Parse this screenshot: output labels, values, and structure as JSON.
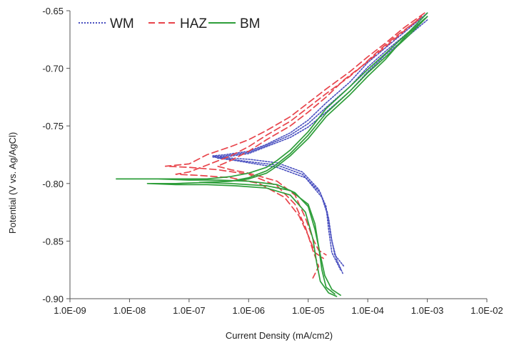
{
  "chart_data": {
    "type": "line",
    "title": "",
    "xlabel": "Current Density (mA/cm2)",
    "ylabel": "Potential (V vs. Ag/AgCl)",
    "x_scale": "log",
    "xlim": [
      1e-09,
      0.01
    ],
    "ylim": [
      -0.9,
      -0.65
    ],
    "x_ticks": [
      1e-09,
      1e-08,
      1e-07,
      1e-06,
      1e-05,
      0.0001,
      0.001,
      0.01
    ],
    "x_tick_labels": [
      "1.0E-09",
      "1.0E-08",
      "1.0E-07",
      "1.0E-06",
      "1.0E-05",
      "1.0E-04",
      "1.0E-03",
      "1.0E-02"
    ],
    "y_ticks": [
      -0.9,
      -0.85,
      -0.8,
      -0.75,
      -0.7,
      -0.65
    ],
    "y_tick_labels": [
      "-0.90",
      "-0.85",
      "-0.80",
      "-0.75",
      "-0.70",
      "-0.65"
    ],
    "grid": false,
    "legend_position": "top-left",
    "series": [
      {
        "name": "WM",
        "color": "#4a50c0",
        "dash": "dotted",
        "curves": [
          [
            [
              0.001,
              -0.652
            ],
            [
              0.0005,
              -0.665
            ],
            [
              0.0002,
              -0.682
            ],
            [
              0.0001,
              -0.695
            ],
            [
              5e-05,
              -0.712
            ],
            [
              2e-05,
              -0.73
            ],
            [
              1e-05,
              -0.745
            ],
            [
              5e-06,
              -0.756
            ],
            [
              2e-06,
              -0.766
            ],
            [
              1e-06,
              -0.772
            ],
            [
              4e-07,
              -0.775
            ],
            [
              2.5e-07,
              -0.776
            ],
            [
              5e-07,
              -0.778
            ],
            [
              1e-06,
              -0.779
            ],
            [
              3e-06,
              -0.782
            ],
            [
              8e-06,
              -0.79
            ],
            [
              1.5e-05,
              -0.805
            ],
            [
              2e-05,
              -0.82
            ],
            [
              2.2e-05,
              -0.84
            ],
            [
              2.5e-05,
              -0.86
            ],
            [
              3.5e-05,
              -0.875
            ]
          ],
          [
            [
              0.001,
              -0.655
            ],
            [
              0.0005,
              -0.668
            ],
            [
              0.0002,
              -0.685
            ],
            [
              0.0001,
              -0.699
            ],
            [
              5e-05,
              -0.716
            ],
            [
              2e-05,
              -0.734
            ],
            [
              1e-05,
              -0.748
            ],
            [
              5e-06,
              -0.758
            ],
            [
              2e-06,
              -0.767
            ],
            [
              1e-06,
              -0.773
            ],
            [
              4e-07,
              -0.776
            ],
            [
              2.5e-07,
              -0.777
            ],
            [
              5e-07,
              -0.779
            ],
            [
              1e-06,
              -0.781
            ],
            [
              3e-06,
              -0.784
            ],
            [
              8e-06,
              -0.792
            ],
            [
              1.6e-05,
              -0.808
            ],
            [
              2.1e-05,
              -0.825
            ],
            [
              2.4e-05,
              -0.845
            ],
            [
              2.8e-05,
              -0.862
            ],
            [
              4e-05,
              -0.872
            ]
          ],
          [
            [
              0.001,
              -0.658
            ],
            [
              0.0005,
              -0.671
            ],
            [
              0.0002,
              -0.688
            ],
            [
              0.0001,
              -0.703
            ],
            [
              5e-05,
              -0.72
            ],
            [
              2e-05,
              -0.738
            ],
            [
              1e-05,
              -0.751
            ],
            [
              5e-06,
              -0.76
            ],
            [
              2e-06,
              -0.768
            ],
            [
              1e-06,
              -0.774
            ],
            [
              4e-07,
              -0.777
            ],
            [
              3e-07,
              -0.778
            ],
            [
              6e-07,
              -0.78
            ],
            [
              1e-06,
              -0.782
            ],
            [
              3e-06,
              -0.786
            ],
            [
              9e-06,
              -0.795
            ],
            [
              1.7e-05,
              -0.812
            ],
            [
              2.2e-05,
              -0.83
            ],
            [
              2.5e-05,
              -0.85
            ],
            [
              3e-05,
              -0.866
            ],
            [
              3.8e-05,
              -0.878
            ]
          ]
        ]
      },
      {
        "name": "HAZ",
        "color": "#e8444b",
        "dash": "dashed",
        "curves": [
          [
            [
              0.0009,
              -0.652
            ],
            [
              0.0004,
              -0.665
            ],
            [
              0.0002,
              -0.678
            ],
            [
              0.0001,
              -0.69
            ],
            [
              5e-05,
              -0.703
            ],
            [
              2e-05,
              -0.718
            ],
            [
              1e-05,
              -0.73
            ],
            [
              5e-06,
              -0.742
            ],
            [
              2e-06,
              -0.754
            ],
            [
              1e-06,
              -0.762
            ],
            [
              5e-07,
              -0.768
            ],
            [
              2e-07,
              -0.775
            ],
            [
              1e-07,
              -0.783
            ],
            [
              4e-08,
              -0.785
            ],
            [
              1e-07,
              -0.786
            ],
            [
              3e-07,
              -0.788
            ],
            [
              1e-06,
              -0.792
            ],
            [
              3e-06,
              -0.802
            ],
            [
              6e-06,
              -0.818
            ],
            [
              9e-06,
              -0.838
            ],
            [
              1.2e-05,
              -0.858
            ],
            [
              1.5e-05,
              -0.872
            ],
            [
              1.2e-05,
              -0.882
            ]
          ],
          [
            [
              0.0008,
              -0.655
            ],
            [
              0.0004,
              -0.668
            ],
            [
              0.0002,
              -0.681
            ],
            [
              0.0001,
              -0.694
            ],
            [
              5e-05,
              -0.707
            ],
            [
              2e-05,
              -0.722
            ],
            [
              1e-05,
              -0.734
            ],
            [
              5e-06,
              -0.746
            ],
            [
              2e-06,
              -0.758
            ],
            [
              1e-06,
              -0.768
            ],
            [
              5e-07,
              -0.776
            ],
            [
              2e-07,
              -0.784
            ],
            [
              1e-07,
              -0.79
            ],
            [
              6e-08,
              -0.792
            ],
            [
              1.5e-07,
              -0.793
            ],
            [
              5e-07,
              -0.795
            ],
            [
              1.5e-06,
              -0.8
            ],
            [
              4e-06,
              -0.812
            ],
            [
              7e-06,
              -0.828
            ],
            [
              1e-05,
              -0.845
            ],
            [
              1.3e-05,
              -0.86
            ],
            [
              1.8e-05,
              -0.865
            ]
          ],
          [
            [
              0.0007,
              -0.658
            ],
            [
              0.0003,
              -0.672
            ],
            [
              0.00015,
              -0.685
            ],
            [
              8e-05,
              -0.698
            ],
            [
              4e-05,
              -0.71
            ],
            [
              2e-05,
              -0.725
            ],
            [
              1e-05,
              -0.738
            ],
            [
              5e-06,
              -0.75
            ],
            [
              2e-06,
              -0.762
            ],
            [
              1e-06,
              -0.772
            ],
            [
              5e-07,
              -0.78
            ],
            [
              3e-07,
              -0.785
            ],
            [
              5e-07,
              -0.788
            ],
            [
              1e-06,
              -0.791
            ],
            [
              3e-06,
              -0.798
            ],
            [
              6e-06,
              -0.81
            ],
            [
              9e-06,
              -0.83
            ],
            [
              1.2e-05,
              -0.848
            ],
            [
              1.5e-05,
              -0.858
            ],
            [
              2e-05,
              -0.862
            ]
          ]
        ]
      },
      {
        "name": "BM",
        "color": "#2e9e3a",
        "dash": "solid",
        "curves": [
          [
            [
              0.001,
              -0.652
            ],
            [
              0.0005,
              -0.668
            ],
            [
              0.0002,
              -0.687
            ],
            [
              0.0001,
              -0.701
            ],
            [
              5e-05,
              -0.716
            ],
            [
              2e-05,
              -0.735
            ],
            [
              1e-05,
              -0.755
            ],
            [
              5e-06,
              -0.771
            ],
            [
              3e-06,
              -0.78
            ],
            [
              2e-06,
              -0.786
            ],
            [
              1e-06,
              -0.791
            ],
            [
              5e-07,
              -0.794
            ],
            [
              2e-07,
              -0.796
            ],
            [
              1e-07,
              -0.796
            ],
            [
              2e-08,
              -0.796
            ],
            [
              6e-09,
              -0.796
            ],
            [
              3e-08,
              -0.796
            ],
            [
              1e-07,
              -0.797
            ],
            [
              3e-07,
              -0.797
            ],
            [
              1e-06,
              -0.798
            ],
            [
              3e-06,
              -0.801
            ],
            [
              6e-06,
              -0.808
            ],
            [
              1e-05,
              -0.82
            ],
            [
              1.3e-05,
              -0.84
            ],
            [
              1.6e-05,
              -0.862
            ],
            [
              1.9e-05,
              -0.88
            ],
            [
              2.5e-05,
              -0.892
            ],
            [
              3.5e-05,
              -0.897
            ]
          ],
          [
            [
              0.001,
              -0.655
            ],
            [
              0.0005,
              -0.671
            ],
            [
              0.0002,
              -0.69
            ],
            [
              0.0001,
              -0.704
            ],
            [
              5e-05,
              -0.72
            ],
            [
              2e-05,
              -0.739
            ],
            [
              1e-05,
              -0.758
            ],
            [
              5e-06,
              -0.774
            ],
            [
              3e-06,
              -0.783
            ],
            [
              2e-06,
              -0.789
            ],
            [
              1e-06,
              -0.795
            ],
            [
              5e-07,
              -0.798
            ],
            [
              2e-07,
              -0.799
            ],
            [
              6e-08,
              -0.8
            ],
            [
              2e-08,
              -0.8
            ],
            [
              6e-08,
              -0.801
            ],
            [
              2e-07,
              -0.801
            ],
            [
              6e-07,
              -0.802
            ],
            [
              2e-06,
              -0.804
            ],
            [
              5e-06,
              -0.81
            ],
            [
              9e-06,
              -0.825
            ],
            [
              1.2e-05,
              -0.848
            ],
            [
              1.4e-05,
              -0.87
            ],
            [
              1.6e-05,
              -0.885
            ],
            [
              2.2e-05,
              -0.895
            ],
            [
              3e-05,
              -0.898
            ]
          ],
          [
            [
              0.0009,
              -0.657
            ],
            [
              0.0004,
              -0.674
            ],
            [
              0.0002,
              -0.692
            ],
            [
              0.0001,
              -0.707
            ],
            [
              5e-05,
              -0.723
            ],
            [
              2e-05,
              -0.742
            ],
            [
              1e-05,
              -0.761
            ],
            [
              5e-06,
              -0.776
            ],
            [
              3e-06,
              -0.785
            ],
            [
              2e-06,
              -0.791
            ],
            [
              1e-06,
              -0.796
            ],
            [
              5e-07,
              -0.798
            ],
            [
              1.5e-07,
              -0.799
            ],
            [
              5e-07,
              -0.8
            ],
            [
              2e-06,
              -0.802
            ],
            [
              5e-06,
              -0.806
            ],
            [
              1e-05,
              -0.818
            ],
            [
              1.3e-05,
              -0.835
            ],
            [
              1.5e-05,
              -0.855
            ],
            [
              1.7e-05,
              -0.875
            ],
            [
              2e-05,
              -0.89
            ],
            [
              2.8e-05,
              -0.896
            ]
          ]
        ]
      }
    ]
  }
}
